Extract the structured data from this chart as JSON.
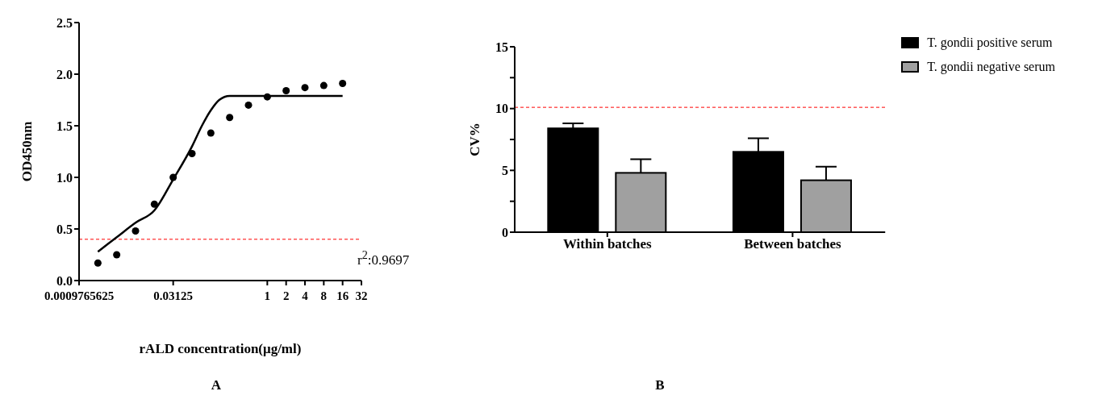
{
  "chart_data": [
    {
      "type": "scatter",
      "title": "A",
      "xlabel": "rALD concentration(μg/ml)",
      "ylabel": "OD450nm",
      "log": "x",
      "xlim": [
        0.0009765625,
        32
      ],
      "xticks": [
        0.0009765625,
        0.03125,
        1,
        2,
        4,
        8,
        16,
        32
      ],
      "ylim": [
        0,
        2.5
      ],
      "yticks": [
        {
          "value": 0,
          "label": "0.0"
        },
        0.5,
        {
          "value": 1,
          "label": "1.0"
        },
        1.5,
        {
          "value": 2,
          "label": "2.0"
        },
        2.5
      ],
      "grid": false,
      "legend": false,
      "series": [
        {
          "type": "scatter",
          "marker": "circle",
          "color": "#000000",
          "x": [
            0.001953125,
            0.00390625,
            0.0078125,
            0.015625,
            0.03125,
            0.0625,
            0.125,
            0.25,
            0.5,
            1,
            2,
            4,
            8,
            16
          ],
          "values": [
            0.17,
            0.25,
            0.48,
            0.74,
            1.0,
            1.23,
            1.43,
            1.58,
            1.7,
            1.78,
            1.84,
            1.87,
            1.89,
            1.91
          ]
        },
        {
          "type": "line",
          "color": "#000000",
          "x": [
            0.001953125,
            0.00390625,
            0.0078125,
            0.015625,
            0.03125,
            0.0625,
            0.09,
            0.125,
            0.17,
            0.25,
            0.35,
            0.5,
            1,
            2,
            4,
            8,
            16
          ],
          "values": [
            0.28,
            0.42,
            0.56,
            0.68,
            0.98,
            1.3,
            1.5,
            1.65,
            1.75,
            1.79,
            1.79,
            1.79,
            1.79,
            1.79,
            1.79,
            1.79,
            1.79
          ]
        }
      ],
      "ref_lines": [
        {
          "axis": "y",
          "value": 0.4,
          "color": "#ff0000",
          "line_style": "dashed"
        }
      ],
      "annotations": [
        "r$^{2}$:0.9697"
      ]
    },
    {
      "type": "bar",
      "title": "B",
      "ylabel": "CV%",
      "categories": [
        "Within batches",
        "Between batches"
      ],
      "ylim": [
        0,
        15
      ],
      "yticks": [
        0,
        {
          "value": 2.5,
          "label": null
        },
        5,
        {
          "value": 7.5,
          "label": null
        },
        10,
        {
          "value": 12.5,
          "label": null
        },
        15
      ],
      "grid": false,
      "legend": "right",
      "series": [
        {
          "name": "T. gondii positive serum",
          "color": "#000000",
          "values": [
            8.4,
            6.5
          ],
          "errors": [
            [
              8.4,
              8.8
            ],
            [
              6.5,
              7.6
            ]
          ]
        },
        {
          "name": "T. gondii negative serum",
          "color": "#a0a0a0",
          "values": [
            4.8,
            4.2
          ],
          "errors": [
            [
              4.8,
              5.9
            ],
            [
              4.2,
              5.3
            ]
          ]
        }
      ],
      "ref_lines": [
        {
          "axis": "y",
          "value": 10.1,
          "color": "#ff0000",
          "line_style": "dashed"
        }
      ]
    }
  ]
}
